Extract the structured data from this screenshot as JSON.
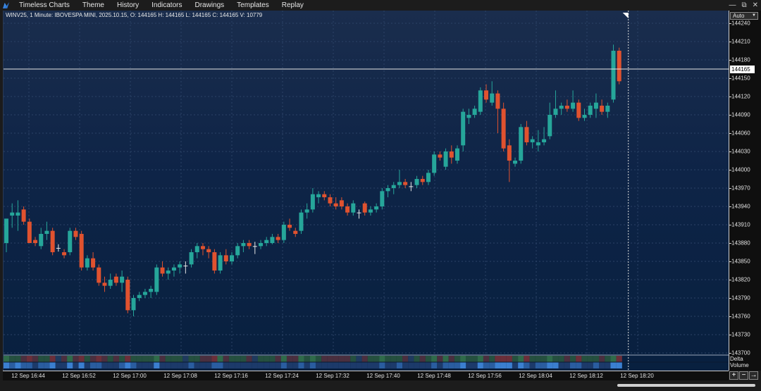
{
  "app": {
    "title": "Timeless Charts",
    "menu": [
      "Theme",
      "History",
      "Indicators",
      "Drawings",
      "Templates",
      "Replay"
    ],
    "window_controls": [
      "—",
      "⧉",
      "✕"
    ]
  },
  "chart_header": "WINV25, 1 Minute: IBOVESPA MINI, 2025.10.15, O: 144165 H: 144165 L: 144165 C: 144165 V: 10779",
  "price_axis": {
    "scale_mode": "Auto",
    "last_price": "144165",
    "ticks": [
      "144240",
      "144210",
      "144180",
      "144150",
      "144120",
      "144090",
      "144060",
      "144030",
      "144000",
      "143970",
      "143940",
      "143910",
      "143880",
      "143850",
      "143820",
      "143790",
      "143760",
      "143730",
      "143700"
    ],
    "indicator_label_1": "Delta",
    "indicator_label_2": "Volume"
  },
  "time_axis": {
    "labels": [
      "12 Sep 16:44",
      "12 Sep 16:52",
      "12 Sep 17:00",
      "12 Sep 17:08",
      "12 Sep 17:16",
      "12 Sep 17:24",
      "12 Sep 17:32",
      "12 Sep 17:40",
      "12 Sep 17:48",
      "12 Sep 17:56",
      "12 Sep 18:04",
      "12 Sep 18:12",
      "12 Sep 18:20"
    ]
  },
  "zoom_controls": [
    "+",
    "−",
    "→"
  ],
  "colors": {
    "bull": "#26a69a",
    "bear": "#e0522f",
    "doji": "#e6e6e6",
    "grid": "#2b4266",
    "price_line": "#e6e6e6"
  },
  "chart_data": {
    "type": "candlestick",
    "symbol": "WINV25",
    "interval": "1 Minute",
    "ylim": [
      143700,
      144245
    ],
    "last_price": 144165,
    "candles": [
      {
        "o": 143880,
        "h": 143920,
        "l": 143865,
        "c": 143920
      },
      {
        "o": 143925,
        "h": 143945,
        "l": 143905,
        "c": 143930
      },
      {
        "o": 143925,
        "h": 143950,
        "l": 143900,
        "c": 143930
      },
      {
        "o": 143935,
        "h": 143940,
        "l": 143910,
        "c": 143915
      },
      {
        "o": 143915,
        "h": 143920,
        "l": 143880,
        "c": 143880
      },
      {
        "o": 143885,
        "h": 143890,
        "l": 143875,
        "c": 143880
      },
      {
        "o": 143875,
        "h": 143905,
        "l": 143870,
        "c": 143895
      },
      {
        "o": 143895,
        "h": 143915,
        "l": 143885,
        "c": 143900
      },
      {
        "o": 143900,
        "h": 143905,
        "l": 143860,
        "c": 143865
      },
      {
        "o": 143872,
        "h": 143878,
        "l": 143866,
        "c": 143872
      },
      {
        "o": 143865,
        "h": 143870,
        "l": 143855,
        "c": 143860
      },
      {
        "o": 143865,
        "h": 143905,
        "l": 143860,
        "c": 143900
      },
      {
        "o": 143900,
        "h": 143905,
        "l": 143885,
        "c": 143890
      },
      {
        "o": 143895,
        "h": 143900,
        "l": 143835,
        "c": 143840
      },
      {
        "o": 143840,
        "h": 143860,
        "l": 143835,
        "c": 143855
      },
      {
        "o": 143855,
        "h": 143865,
        "l": 143835,
        "c": 143840
      },
      {
        "o": 143840,
        "h": 143845,
        "l": 143810,
        "c": 143815
      },
      {
        "o": 143815,
        "h": 143825,
        "l": 143800,
        "c": 143810
      },
      {
        "o": 143810,
        "h": 143830,
        "l": 143805,
        "c": 143820
      },
      {
        "o": 143825,
        "h": 143830,
        "l": 143810,
        "c": 143815
      },
      {
        "o": 143815,
        "h": 143835,
        "l": 143800,
        "c": 143825
      },
      {
        "o": 143820,
        "h": 143825,
        "l": 143765,
        "c": 143770
      },
      {
        "o": 143770,
        "h": 143795,
        "l": 143760,
        "c": 143790
      },
      {
        "o": 143790,
        "h": 143800,
        "l": 143785,
        "c": 143795
      },
      {
        "o": 143795,
        "h": 143805,
        "l": 143790,
        "c": 143800
      },
      {
        "o": 143800,
        "h": 143810,
        "l": 143790,
        "c": 143805
      },
      {
        "o": 143800,
        "h": 143845,
        "l": 143795,
        "c": 143840
      },
      {
        "o": 143840,
        "h": 143850,
        "l": 143825,
        "c": 143830
      },
      {
        "o": 143830,
        "h": 143840,
        "l": 143820,
        "c": 143835
      },
      {
        "o": 143835,
        "h": 143845,
        "l": 143825,
        "c": 143840
      },
      {
        "o": 143840,
        "h": 143850,
        "l": 143830,
        "c": 143845
      },
      {
        "o": 143843,
        "h": 143850,
        "l": 143830,
        "c": 143843
      },
      {
        "o": 143845,
        "h": 143870,
        "l": 143840,
        "c": 143865
      },
      {
        "o": 143865,
        "h": 143880,
        "l": 143855,
        "c": 143875
      },
      {
        "o": 143875,
        "h": 143880,
        "l": 143860,
        "c": 143870
      },
      {
        "o": 143870,
        "h": 143875,
        "l": 143855,
        "c": 143865
      },
      {
        "o": 143865,
        "h": 143870,
        "l": 143830,
        "c": 143835
      },
      {
        "o": 143835,
        "h": 143865,
        "l": 143830,
        "c": 143860
      },
      {
        "o": 143860,
        "h": 143870,
        "l": 143845,
        "c": 143850
      },
      {
        "o": 143850,
        "h": 143865,
        "l": 143845,
        "c": 143860
      },
      {
        "o": 143860,
        "h": 143880,
        "l": 143855,
        "c": 143875
      },
      {
        "o": 143875,
        "h": 143885,
        "l": 143865,
        "c": 143880
      },
      {
        "o": 143880,
        "h": 143885,
        "l": 143870,
        "c": 143875
      },
      {
        "o": 143875,
        "h": 143882,
        "l": 143862,
        "c": 143875
      },
      {
        "o": 143875,
        "h": 143885,
        "l": 143870,
        "c": 143880
      },
      {
        "o": 143880,
        "h": 143890,
        "l": 143875,
        "c": 143885
      },
      {
        "o": 143880,
        "h": 143895,
        "l": 143878,
        "c": 143890
      },
      {
        "o": 143890,
        "h": 143895,
        "l": 143880,
        "c": 143885
      },
      {
        "o": 143885,
        "h": 143915,
        "l": 143880,
        "c": 143910
      },
      {
        "o": 143910,
        "h": 143920,
        "l": 143900,
        "c": 143905
      },
      {
        "o": 143900,
        "h": 143905,
        "l": 143890,
        "c": 143895
      },
      {
        "o": 143900,
        "h": 143935,
        "l": 143895,
        "c": 143930
      },
      {
        "o": 143930,
        "h": 143945,
        "l": 143920,
        "c": 143935
      },
      {
        "o": 143935,
        "h": 143970,
        "l": 143930,
        "c": 143960
      },
      {
        "o": 143955,
        "h": 143965,
        "l": 143945,
        "c": 143960
      },
      {
        "o": 143960,
        "h": 143965,
        "l": 143950,
        "c": 143955
      },
      {
        "o": 143955,
        "h": 143960,
        "l": 143940,
        "c": 143945
      },
      {
        "o": 143945,
        "h": 143955,
        "l": 143935,
        "c": 143940
      },
      {
        "o": 143950,
        "h": 143955,
        "l": 143935,
        "c": 143940
      },
      {
        "o": 143940,
        "h": 143945,
        "l": 143925,
        "c": 143930
      },
      {
        "o": 143930,
        "h": 143950,
        "l": 143925,
        "c": 143945
      },
      {
        "o": 143930,
        "h": 143935,
        "l": 143920,
        "c": 143930
      },
      {
        "o": 143945,
        "h": 143948,
        "l": 143925,
        "c": 143930
      },
      {
        "o": 143930,
        "h": 143940,
        "l": 143925,
        "c": 143935
      },
      {
        "o": 143935,
        "h": 143945,
        "l": 143930,
        "c": 143940
      },
      {
        "o": 143940,
        "h": 143970,
        "l": 143935,
        "c": 143965
      },
      {
        "o": 143965,
        "h": 143975,
        "l": 143955,
        "c": 143970
      },
      {
        "o": 143970,
        "h": 143980,
        "l": 143960,
        "c": 143975
      },
      {
        "o": 143975,
        "h": 144000,
        "l": 143970,
        "c": 143980
      },
      {
        "o": 143980,
        "h": 143985,
        "l": 143970,
        "c": 143975
      },
      {
        "o": 143973,
        "h": 143980,
        "l": 143965,
        "c": 143973
      },
      {
        "o": 143975,
        "h": 143990,
        "l": 143970,
        "c": 143985
      },
      {
        "o": 143985,
        "h": 143990,
        "l": 143975,
        "c": 143980
      },
      {
        "o": 143980,
        "h": 144000,
        "l": 143975,
        "c": 143995
      },
      {
        "o": 143995,
        "h": 144030,
        "l": 143990,
        "c": 144025
      },
      {
        "o": 144025,
        "h": 144030,
        "l": 144015,
        "c": 144020
      },
      {
        "o": 144005,
        "h": 144035,
        "l": 144000,
        "c": 144030
      },
      {
        "o": 144030,
        "h": 144040,
        "l": 144010,
        "c": 144020
      },
      {
        "o": 144015,
        "h": 144040,
        "l": 144010,
        "c": 144035
      },
      {
        "o": 144040,
        "h": 144100,
        "l": 144030,
        "c": 144095
      },
      {
        "o": 144085,
        "h": 144100,
        "l": 144075,
        "c": 144090
      },
      {
        "o": 144090,
        "h": 144105,
        "l": 144085,
        "c": 144100
      },
      {
        "o": 144095,
        "h": 144135,
        "l": 144090,
        "c": 144130
      },
      {
        "o": 144130,
        "h": 144140,
        "l": 144110,
        "c": 144115
      },
      {
        "o": 144110,
        "h": 144145,
        "l": 144105,
        "c": 144125
      },
      {
        "o": 144125,
        "h": 144130,
        "l": 144060,
        "c": 144100
      },
      {
        "o": 144100,
        "h": 144110,
        "l": 144030,
        "c": 144035
      },
      {
        "o": 144040,
        "h": 144050,
        "l": 143980,
        "c": 144015
      },
      {
        "o": 144010,
        "h": 144020,
        "l": 144005,
        "c": 144015
      },
      {
        "o": 144015,
        "h": 144075,
        "l": 144010,
        "c": 144070
      },
      {
        "o": 144070,
        "h": 144080,
        "l": 144040,
        "c": 144045
      },
      {
        "o": 144045,
        "h": 144055,
        "l": 144035,
        "c": 144050
      },
      {
        "o": 144040,
        "h": 144065,
        "l": 144030,
        "c": 144045
      },
      {
        "o": 144045,
        "h": 144070,
        "l": 144040,
        "c": 144050
      },
      {
        "o": 144055,
        "h": 144110,
        "l": 144050,
        "c": 144090
      },
      {
        "o": 144090,
        "h": 144130,
        "l": 144085,
        "c": 144100
      },
      {
        "o": 144100,
        "h": 144110,
        "l": 144090,
        "c": 144105
      },
      {
        "o": 144105,
        "h": 144115,
        "l": 144095,
        "c": 144100
      },
      {
        "o": 144100,
        "h": 144130,
        "l": 144095,
        "c": 144110
      },
      {
        "o": 144110,
        "h": 144115,
        "l": 144080,
        "c": 144085
      },
      {
        "o": 144085,
        "h": 144100,
        "l": 144080,
        "c": 144090
      },
      {
        "o": 144090,
        "h": 144110,
        "l": 144085,
        "c": 144105
      },
      {
        "o": 144100,
        "h": 144125,
        "l": 144085,
        "c": 144110
      },
      {
        "o": 144105,
        "h": 144115,
        "l": 144090,
        "c": 144095
      },
      {
        "o": 144095,
        "h": 144110,
        "l": 144085,
        "c": 144105
      },
      {
        "o": 144115,
        "h": 144205,
        "l": 144110,
        "c": 144195
      },
      {
        "o": 144195,
        "h": 144200,
        "l": 144140,
        "c": 144145
      }
    ]
  }
}
